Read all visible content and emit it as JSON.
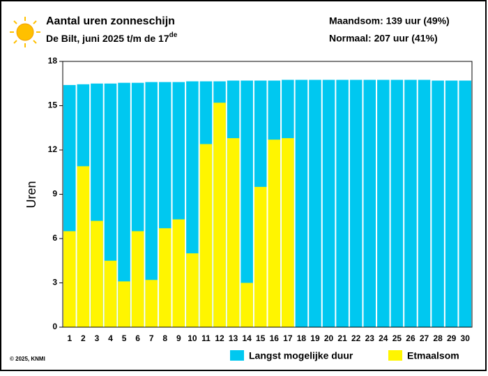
{
  "chart_data": {
    "type": "bar",
    "title": "Aantal uren zonneschijn",
    "subtitle": "De Bilt, juni 2025 t/m de 17",
    "subtitle_superscript": "de",
    "annotations": [
      "Maandsom: 139 uur (49%)",
      "Normaal: 207 uur (41%)"
    ],
    "credit": "© 2025, KNMI",
    "ylabel": "Uren",
    "categories": [
      "1",
      "2",
      "3",
      "4",
      "5",
      "6",
      "7",
      "8",
      "9",
      "10",
      "11",
      "12",
      "13",
      "14",
      "15",
      "16",
      "17",
      "18",
      "19",
      "20",
      "21",
      "22",
      "23",
      "24",
      "25",
      "26",
      "27",
      "28",
      "29",
      "30"
    ],
    "series": [
      {
        "name": "Langst mogelijke duur",
        "color": "#00c8f0",
        "values": [
          16.4,
          16.45,
          16.5,
          16.5,
          16.55,
          16.55,
          16.6,
          16.6,
          16.6,
          16.65,
          16.65,
          16.65,
          16.7,
          16.7,
          16.7,
          16.7,
          16.75,
          16.75,
          16.75,
          16.75,
          16.75,
          16.75,
          16.75,
          16.75,
          16.75,
          16.75,
          16.75,
          16.7,
          16.7,
          16.7
        ]
      },
      {
        "name": "Etmaalsom",
        "color": "#fff500",
        "values": [
          6.5,
          10.9,
          7.2,
          4.5,
          3.1,
          6.5,
          3.2,
          6.7,
          7.3,
          5.0,
          12.4,
          15.2,
          12.8,
          3.0,
          9.5,
          12.7,
          12.8,
          null,
          null,
          null,
          null,
          null,
          null,
          null,
          null,
          null,
          null,
          null,
          null,
          null
        ]
      }
    ],
    "overlap": true,
    "ylim": [
      0,
      18
    ],
    "yticks": [
      0,
      3,
      6,
      9,
      12,
      15,
      18
    ],
    "legend": "bottom"
  }
}
